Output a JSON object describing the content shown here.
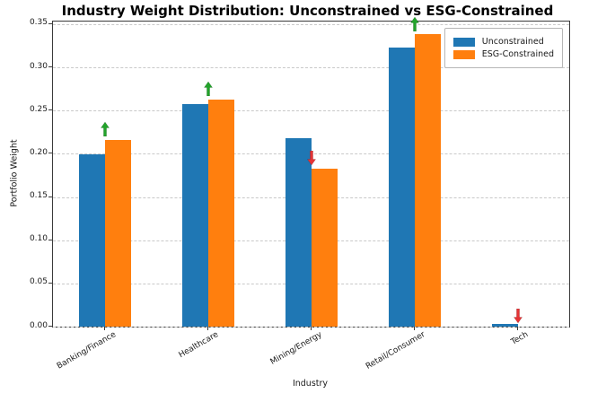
{
  "chart_data": {
    "type": "bar",
    "title": "Industry Weight Distribution: Unconstrained vs ESG-Constrained",
    "xlabel": "Industry",
    "ylabel": "Portfolio Weight",
    "categories": [
      "Banking/Finance",
      "Healthcare",
      "Mining/Energy",
      "Retail/Consumer",
      "Tech"
    ],
    "series": [
      {
        "name": "Unconstrained",
        "color": "#1f77b4",
        "values": [
          0.199,
          0.257,
          0.218,
          0.323,
          0.003
        ]
      },
      {
        "name": "ESG-Constrained",
        "color": "#ff7f0e",
        "values": [
          0.216,
          0.263,
          0.183,
          0.338,
          0.0
        ]
      }
    ],
    "ylim": [
      0,
      0.353
    ],
    "yticks": [
      0.0,
      0.05,
      0.1,
      0.15,
      0.2,
      0.25,
      0.3,
      0.35
    ],
    "ytick_labels": [
      "0.00",
      "0.05",
      "0.10",
      "0.15",
      "0.20",
      "0.25",
      "0.30",
      "0.35"
    ],
    "grid": "horizontal-dashed",
    "legend_position": "upper-right",
    "annotations": [
      {
        "category": "Banking/Finance",
        "direction": "up",
        "symbol": "↑",
        "color": "#22a32a"
      },
      {
        "category": "Healthcare",
        "direction": "up",
        "symbol": "↑",
        "color": "#22a32a"
      },
      {
        "category": "Mining/Energy",
        "direction": "down",
        "symbol": "↓",
        "color": "#e53335"
      },
      {
        "category": "Retail/Consumer",
        "direction": "up",
        "symbol": "↑",
        "color": "#22a32a"
      },
      {
        "category": "Tech",
        "direction": "down",
        "symbol": "↓",
        "color": "#e53335"
      }
    ]
  }
}
